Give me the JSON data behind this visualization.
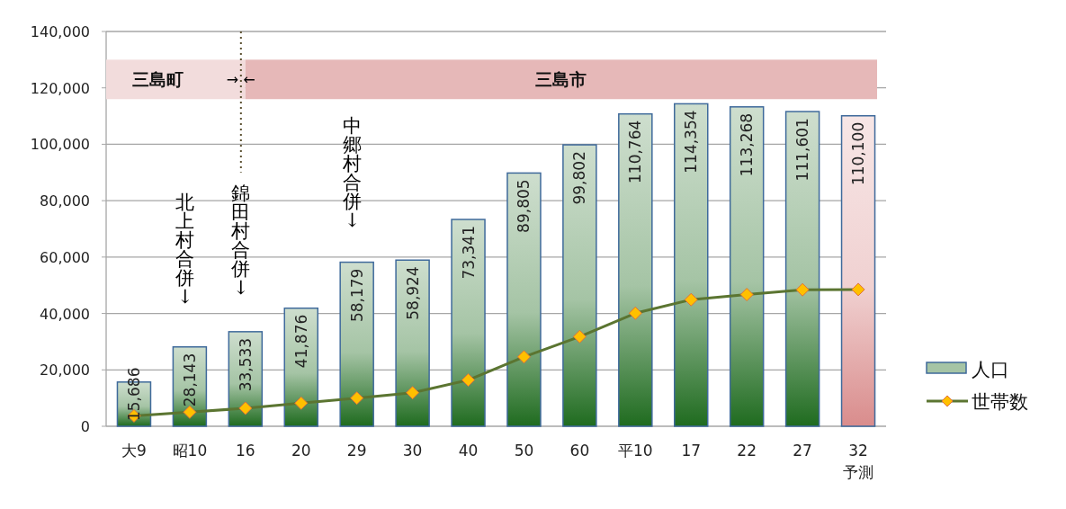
{
  "chart_data": {
    "type": "bar",
    "categories": [
      "大9",
      "昭10",
      "16",
      "20",
      "29",
      "30",
      "40",
      "50",
      "60",
      "平10",
      "17",
      "22",
      "27",
      "32\n予測"
    ],
    "series": [
      {
        "name": "人口",
        "color": "#1f6b1f",
        "colors": [
          "#1f6b1f",
          "#1f6b1f",
          "#1f6b1f",
          "#1f6b1f",
          "#1f6b1f",
          "#1f6b1f",
          "#1f6b1f",
          "#1f6b1f",
          "#1f6b1f",
          "#1f6b1f",
          "#1f6b1f",
          "#1f6b1f",
          "#1f6b1f",
          "#d98c8c"
        ],
        "values": [
          15686,
          28143,
          33533,
          41876,
          58179,
          58924,
          73341,
          89805,
          99802,
          110764,
          114354,
          113268,
          111601,
          110100
        ],
        "value_labels": [
          "15,686",
          "28,143",
          "33,533",
          "41,876",
          "58,179",
          "58,924",
          "73,341",
          "89,805",
          "99,802",
          "110,764",
          "114,354",
          "113,268",
          "111,601",
          "110,100"
        ]
      },
      {
        "name": "世帯数",
        "type": "line",
        "color": "#5b7531",
        "values": [
          3700,
          5000,
          6400,
          8200,
          10000,
          11900,
          16400,
          24600,
          31800,
          40100,
          44900,
          46700,
          48400,
          48500
        ]
      }
    ],
    "ylim": [
      0,
      140000
    ],
    "yticks": [
      {
        "value": 0,
        "label": "0"
      },
      {
        "value": 20000,
        "label": "20,000"
      },
      {
        "value": 40000,
        "label": "40,000"
      },
      {
        "value": 60000,
        "label": "60,000"
      },
      {
        "value": 80000,
        "label": "80,000"
      },
      {
        "value": 100000,
        "label": "100,000"
      },
      {
        "value": 120000,
        "label": "120,000"
      },
      {
        "value": 140000,
        "label": "140,000"
      }
    ],
    "grid": "y",
    "legend": "right",
    "marker": "diamond",
    "line_style": "solid",
    "bands": [
      {
        "axis": "x",
        "from": "大9",
        "to": "16",
        "label": "三島町",
        "color": "#f2dcdc"
      },
      {
        "axis": "x",
        "from": "16",
        "to": "32\n予測",
        "label": "三島市",
        "color": "#e6b8b8"
      }
    ],
    "ref_lines": [
      {
        "axis": "x",
        "value": "16",
        "label": "→ ←",
        "line_style": "dotted",
        "color": "#5a5030"
      }
    ],
    "annotations": [
      "北上村合併↓",
      "錦田村合併↓",
      "中郷村合併↓"
    ]
  }
}
